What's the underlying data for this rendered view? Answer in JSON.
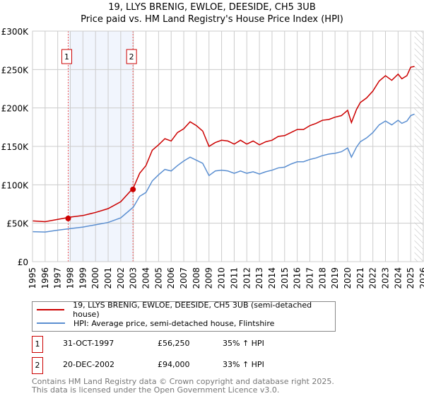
{
  "title": "19, LLYS BRENIG, EWLOE, DEESIDE, CH5 3UB",
  "subtitle": "Price paid vs. HM Land Registry's House Price Index (HPI)",
  "chart_data": {
    "type": "line",
    "xlim": [
      1995,
      2026
    ],
    "ylim": [
      0,
      300000
    ],
    "x_ticks": [
      "1995",
      "1996",
      "1997",
      "1998",
      "1999",
      "2000",
      "2001",
      "2002",
      "2003",
      "2004",
      "2005",
      "2006",
      "2007",
      "2008",
      "2009",
      "2010",
      "2011",
      "2012",
      "2013",
      "2014",
      "2015",
      "2016",
      "2017",
      "2018",
      "2019",
      "2020",
      "2021",
      "2022",
      "2023",
      "2024",
      "2025",
      "2026"
    ],
    "y_ticks": [
      {
        "v": 0,
        "l": "£0"
      },
      {
        "v": 50000,
        "l": "£50K"
      },
      {
        "v": 100000,
        "l": "£100K"
      },
      {
        "v": 150000,
        "l": "£150K"
      },
      {
        "v": 200000,
        "l": "£200K"
      },
      {
        "v": 250000,
        "l": "£250K"
      },
      {
        "v": 300000,
        "l": "£300K"
      }
    ],
    "x": [
      1995,
      1996,
      1997,
      1998,
      1999,
      2000,
      2001,
      2002,
      2003,
      2003.5,
      2004,
      2004.5,
      2005,
      2005.5,
      2006,
      2006.5,
      2007,
      2007.5,
      2008,
      2008.5,
      2009,
      2009.5,
      2010,
      2010.5,
      2011,
      2011.5,
      2012,
      2012.5,
      2013,
      2013.5,
      2014,
      2014.5,
      2015,
      2015.5,
      2016,
      2016.5,
      2017,
      2017.5,
      2018,
      2018.5,
      2019,
      2019.5,
      2020,
      2020.3,
      2020.7,
      2021,
      2021.5,
      2022,
      2022.5,
      2023,
      2023.5,
      2024,
      2024.3,
      2024.7,
      2025,
      2025.3
    ],
    "series": [
      {
        "name": "19, LLYS BRENIG, EWLOE, DEESIDE, CH5 3UB (semi-detached house)",
        "color": "#cc0000",
        "values": [
          53000,
          52000,
          55000,
          58000,
          60000,
          64000,
          69000,
          78000,
          96000,
          115000,
          125000,
          145000,
          152000,
          160000,
          157000,
          168000,
          173000,
          182000,
          177000,
          170000,
          150000,
          155000,
          158000,
          157000,
          153000,
          158000,
          153000,
          157000,
          152000,
          156000,
          158000,
          163000,
          164000,
          168000,
          172000,
          172000,
          177000,
          180000,
          184000,
          185000,
          188000,
          190000,
          197000,
          181000,
          198000,
          207000,
          213000,
          222000,
          235000,
          242000,
          236000,
          244000,
          238000,
          242000,
          253000,
          254000
        ]
      },
      {
        "name": "HPI: Average price, semi-detached house, Flintshire",
        "color": "#5b8fd1",
        "values": [
          39000,
          38500,
          41000,
          43000,
          45000,
          48000,
          51000,
          57000,
          71000,
          85000,
          90000,
          105000,
          113000,
          120000,
          118000,
          125000,
          131000,
          136000,
          132000,
          128000,
          112000,
          118000,
          119000,
          118000,
          115000,
          118000,
          115000,
          117000,
          114000,
          117000,
          119000,
          122000,
          123000,
          127000,
          130000,
          130000,
          133000,
          135000,
          138000,
          140000,
          141000,
          143000,
          148000,
          136000,
          149000,
          156000,
          161000,
          168000,
          178000,
          183000,
          178000,
          184000,
          180000,
          183000,
          190000,
          192000
        ]
      }
    ],
    "sales": [
      {
        "label": "1",
        "x": 1997.83,
        "y": 56250
      },
      {
        "label": "2",
        "x": 2002.97,
        "y": 94000
      }
    ],
    "forecast_from": 2025.3
  },
  "table": [
    {
      "num": "1",
      "date": "31-OCT-1997",
      "price": "£56,250",
      "hpi": "35% ↑ HPI"
    },
    {
      "num": "2",
      "date": "20-DEC-2002",
      "price": "£94,000",
      "hpi": "33% ↑ HPI"
    }
  ],
  "footer": [
    "Contains HM Land Registry data © Crown copyright and database right 2025.",
    "This data is licensed under the Open Government Licence v3.0."
  ]
}
